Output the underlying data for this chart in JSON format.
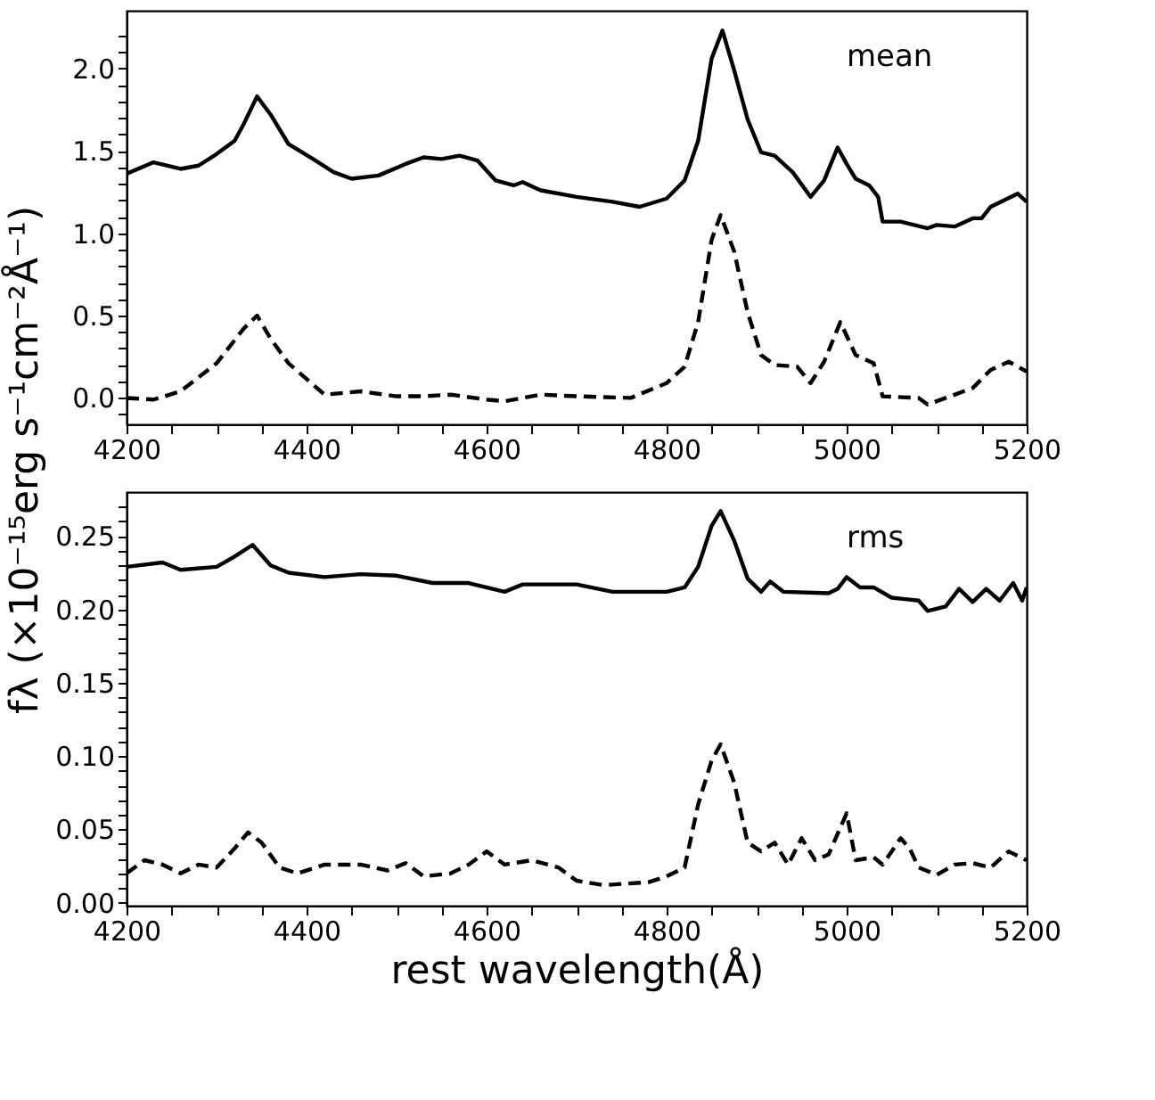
{
  "chart_data": [
    {
      "type": "line",
      "ylabel": "fλ (×10⁻¹⁵erg s⁻¹cm⁻²Å⁻¹)",
      "annotations": [
        "mean"
      ],
      "xlim": [
        4200,
        5200
      ],
      "ylim": [
        -0.16,
        2.35
      ],
      "xticks": [
        4200,
        {
          "value": 4250,
          "label": null
        },
        4400,
        {
          "value": 4450,
          "label": null
        },
        {
          "value": 4300,
          "label": null
        },
        {
          "value": 4350,
          "label": null
        },
        4600,
        {
          "value": 4500,
          "label": null
        },
        {
          "value": 4550,
          "label": null
        },
        {
          "value": 4650,
          "label": null
        },
        4800,
        {
          "value": 4700,
          "label": null
        },
        {
          "value": 4750,
          "label": null
        },
        {
          "value": 4850,
          "label": null
        },
        5000,
        {
          "value": 4900,
          "label": null
        },
        {
          "value": 4950,
          "label": null
        },
        {
          "value": 5050,
          "label": null
        },
        5200,
        {
          "value": 5100,
          "label": null
        },
        {
          "value": 5150,
          "label": null
        }
      ],
      "yticks": [
        {
          "value": 0,
          "label": "0.0"
        },
        0.5,
        {
          "value": 1,
          "label": "1.0"
        },
        1.5,
        {
          "value": 2,
          "label": "2.0"
        },
        {
          "value": 0.1,
          "label": null
        },
        {
          "value": 0.2,
          "label": null
        },
        {
          "value": 0.3,
          "label": null
        },
        {
          "value": 0.4,
          "label": null
        },
        {
          "value": 0.6,
          "label": null
        },
        {
          "value": 0.7,
          "label": null
        },
        {
          "value": 0.8,
          "label": null
        },
        {
          "value": 0.9,
          "label": null
        },
        {
          "value": 1.1,
          "label": null
        },
        {
          "value": 1.2,
          "label": null
        },
        {
          "value": 1.3,
          "label": null
        },
        {
          "value": 1.4,
          "label": null
        },
        {
          "value": 1.6,
          "label": null
        },
        {
          "value": 1.7,
          "label": null
        },
        {
          "value": 1.8,
          "label": null
        },
        {
          "value": 1.9,
          "label": null
        },
        {
          "value": 2.1,
          "label": null
        },
        {
          "value": 2.2,
          "label": null
        },
        {
          "value": -0.1,
          "label": null
        }
      ],
      "grid": false,
      "marker": "none",
      "series": [
        {
          "color": "#000000",
          "line_style": "solid",
          "x": [
            4200,
            4230,
            4260,
            4280,
            4300,
            4320,
            4330,
            4345,
            4360,
            4380,
            4410,
            4430,
            4450,
            4480,
            4510,
            4530,
            4550,
            4570,
            4590,
            4610,
            4630,
            4640,
            4660,
            4700,
            4740,
            4770,
            4800,
            4820,
            4835,
            4850,
            4862,
            4875,
            4890,
            4905,
            4920,
            4940,
            4960,
            4975,
            4990,
            5000,
            5010,
            5025,
            5035,
            5040,
            5060,
            5090,
            5100,
            5120,
            5140,
            5150,
            5160,
            5190,
            5200
          ],
          "values": [
            1.36,
            1.43,
            1.39,
            1.41,
            1.48,
            1.56,
            1.66,
            1.83,
            1.72,
            1.54,
            1.44,
            1.37,
            1.33,
            1.35,
            1.42,
            1.46,
            1.45,
            1.47,
            1.44,
            1.32,
            1.29,
            1.31,
            1.26,
            1.22,
            1.19,
            1.16,
            1.21,
            1.32,
            1.56,
            2.06,
            2.23,
            1.99,
            1.69,
            1.49,
            1.47,
            1.37,
            1.22,
            1.32,
            1.52,
            1.42,
            1.33,
            1.29,
            1.22,
            1.07,
            1.07,
            1.03,
            1.05,
            1.04,
            1.09,
            1.09,
            1.16,
            1.24,
            1.19
          ]
        },
        {
          "color": "#000000",
          "line_style": "dashed",
          "x": [
            4200,
            4230,
            4260,
            4300,
            4330,
            4345,
            4360,
            4380,
            4420,
            4460,
            4500,
            4530,
            4560,
            4600,
            4620,
            4660,
            4700,
            4760,
            4800,
            4820,
            4835,
            4850,
            4860,
            4875,
            4890,
            4905,
            4920,
            4945,
            4960,
            4975,
            4993,
            5010,
            5030,
            5040,
            5080,
            5090,
            5110,
            5140,
            5160,
            5180,
            5200
          ],
          "values": [
            0.0,
            -0.01,
            0.04,
            0.21,
            0.42,
            0.5,
            0.36,
            0.21,
            0.02,
            0.04,
            0.01,
            0.01,
            0.02,
            -0.01,
            -0.02,
            0.02,
            0.01,
            0.0,
            0.09,
            0.19,
            0.46,
            0.96,
            1.11,
            0.89,
            0.52,
            0.26,
            0.2,
            0.19,
            0.09,
            0.22,
            0.46,
            0.26,
            0.21,
            0.01,
            0.0,
            -0.04,
            0.0,
            0.06,
            0.17,
            0.22,
            0.16
          ]
        }
      ]
    },
    {
      "type": "line",
      "xlabel": "rest wavelength(Å)",
      "annotations": [
        "rms"
      ],
      "xlim": [
        4200,
        5200
      ],
      "ylim": [
        -0.002,
        0.28
      ],
      "xticks": [
        4200,
        {
          "value": 4250,
          "label": null
        },
        4400,
        {
          "value": 4300,
          "label": null
        },
        {
          "value": 4350,
          "label": null
        },
        {
          "value": 4450,
          "label": null
        },
        4600,
        {
          "value": 4500,
          "label": null
        },
        {
          "value": 4550,
          "label": null
        },
        {
          "value": 4650,
          "label": null
        },
        4800,
        {
          "value": 4700,
          "label": null
        },
        {
          "value": 4750,
          "label": null
        },
        {
          "value": 4850,
          "label": null
        },
        5000,
        {
          "value": 4900,
          "label": null
        },
        {
          "value": 4950,
          "label": null
        },
        {
          "value": 5050,
          "label": null
        },
        5200,
        {
          "value": 5100,
          "label": null
        },
        {
          "value": 5150,
          "label": null
        }
      ],
      "yticks": [
        {
          "value": 0,
          "label": "0.00"
        },
        0.05,
        {
          "value": 0.1,
          "label": "0.10"
        },
        0.15,
        {
          "value": 0.2,
          "label": "0.20"
        },
        0.25,
        {
          "value": 0.01,
          "label": null
        },
        {
          "value": 0.02,
          "label": null
        },
        {
          "value": 0.03,
          "label": null
        },
        {
          "value": 0.04,
          "label": null
        },
        {
          "value": 0.06,
          "label": null
        },
        {
          "value": 0.07,
          "label": null
        },
        {
          "value": 0.08,
          "label": null
        },
        {
          "value": 0.09,
          "label": null
        },
        {
          "value": 0.11,
          "label": null
        },
        {
          "value": 0.12,
          "label": null
        },
        {
          "value": 0.13,
          "label": null
        },
        {
          "value": 0.14,
          "label": null
        },
        {
          "value": 0.16,
          "label": null
        },
        {
          "value": 0.17,
          "label": null
        },
        {
          "value": 0.18,
          "label": null
        },
        {
          "value": 0.19,
          "label": null
        },
        {
          "value": 0.21,
          "label": null
        },
        {
          "value": 0.22,
          "label": null
        },
        {
          "value": 0.23,
          "label": null
        },
        {
          "value": 0.24,
          "label": null
        },
        {
          "value": 0.26,
          "label": null
        },
        {
          "value": 0.27,
          "label": null
        }
      ],
      "grid": false,
      "marker": "none",
      "series": [
        {
          "color": "#000000",
          "line_style": "solid",
          "x": [
            4200,
            4240,
            4260,
            4300,
            4320,
            4340,
            4360,
            4380,
            4420,
            4460,
            4500,
            4540,
            4580,
            4620,
            4640,
            4700,
            4740,
            4800,
            4820,
            4835,
            4850,
            4860,
            4875,
            4890,
            4905,
            4915,
            4930,
            4980,
            4990,
            5000,
            5015,
            5030,
            5050,
            5080,
            5090,
            5110,
            5125,
            5140,
            5155,
            5170,
            5185,
            5195,
            5200
          ],
          "values": [
            0.229,
            0.232,
            0.227,
            0.229,
            0.236,
            0.244,
            0.23,
            0.225,
            0.222,
            0.224,
            0.223,
            0.218,
            0.218,
            0.212,
            0.217,
            0.217,
            0.212,
            0.212,
            0.215,
            0.229,
            0.257,
            0.267,
            0.247,
            0.221,
            0.212,
            0.219,
            0.212,
            0.211,
            0.214,
            0.222,
            0.215,
            0.215,
            0.208,
            0.206,
            0.199,
            0.202,
            0.214,
            0.205,
            0.214,
            0.206,
            0.218,
            0.206,
            0.215
          ]
        },
        {
          "color": "#000000",
          "line_style": "dashed",
          "x": [
            4200,
            4220,
            4240,
            4260,
            4280,
            4300,
            4320,
            4335,
            4350,
            4370,
            4390,
            4420,
            4460,
            4490,
            4510,
            4530,
            4560,
            4580,
            4600,
            4620,
            4650,
            4680,
            4700,
            4730,
            4780,
            4800,
            4820,
            4835,
            4850,
            4860,
            4875,
            4890,
            4905,
            4920,
            4935,
            4950,
            4965,
            4980,
            5000,
            5010,
            5030,
            5040,
            5060,
            5070,
            5080,
            5100,
            5120,
            5140,
            5160,
            5180,
            5200
          ],
          "values": [
            0.02,
            0.029,
            0.026,
            0.02,
            0.026,
            0.024,
            0.037,
            0.048,
            0.041,
            0.024,
            0.02,
            0.026,
            0.026,
            0.022,
            0.027,
            0.018,
            0.02,
            0.026,
            0.035,
            0.026,
            0.029,
            0.024,
            0.015,
            0.012,
            0.014,
            0.018,
            0.024,
            0.067,
            0.097,
            0.108,
            0.082,
            0.041,
            0.035,
            0.041,
            0.026,
            0.044,
            0.029,
            0.033,
            0.061,
            0.029,
            0.031,
            0.026,
            0.044,
            0.037,
            0.024,
            0.019,
            0.026,
            0.027,
            0.024,
            0.035,
            0.029
          ]
        }
      ]
    }
  ]
}
